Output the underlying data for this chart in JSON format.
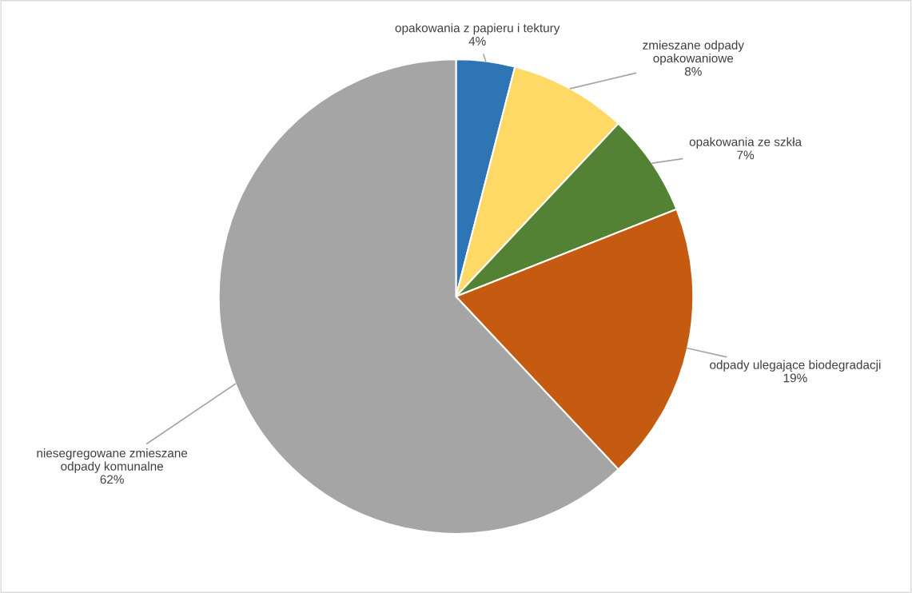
{
  "chart_data": {
    "type": "pie",
    "categories": [
      "opakowania z papieru i tektury",
      "zmieszane odpady\nopakowaniowe",
      "opakowania ze szkła",
      "odpady ulegające biodegradacji",
      "niesegregowane zmieszane\nodpady komunalne"
    ],
    "values": [
      4,
      8,
      7,
      19,
      62
    ],
    "value_labels": [
      "4%",
      "8%",
      "7%",
      "19%",
      "62%"
    ],
    "colors": [
      "#2e75b6",
      "#ffd966",
      "#548235",
      "#c55a11",
      "#a5a5a5"
    ],
    "legend": false
  }
}
